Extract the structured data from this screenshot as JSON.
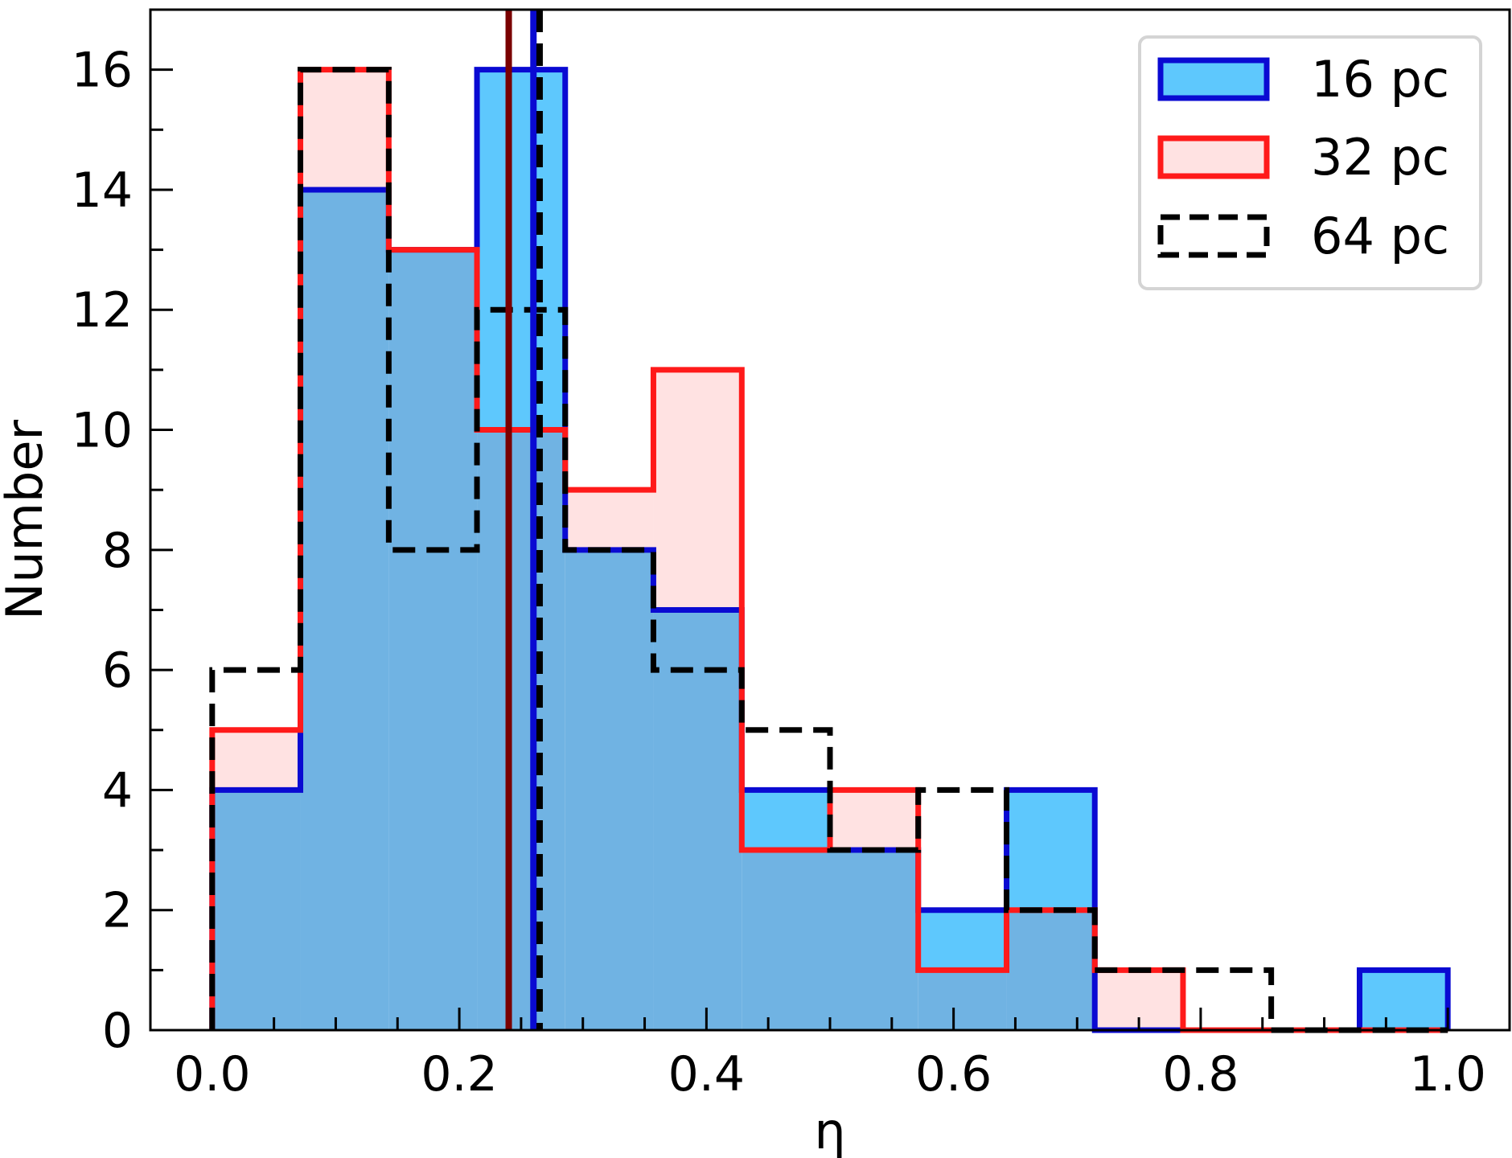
{
  "chart_data": {
    "type": "bar",
    "xlabel": "η",
    "ylabel": "Number",
    "xlim": [
      -0.05,
      1.05
    ],
    "ylim": [
      0,
      17
    ],
    "xticks": [
      "0.0",
      "0.2",
      "0.4",
      "0.6",
      "0.8",
      "1.0"
    ],
    "yticks": [
      "0",
      "2",
      "4",
      "6",
      "8",
      "10",
      "12",
      "14",
      "16"
    ],
    "bin_edges": [
      0.0,
      0.0714,
      0.1429,
      0.2143,
      0.2857,
      0.3571,
      0.4286,
      0.5,
      0.5714,
      0.6429,
      0.7143,
      0.7857,
      0.8571,
      0.9286,
      1.0
    ],
    "series": [
      {
        "name": "16 pc",
        "values": [
          4,
          14,
          13,
          16,
          8,
          7,
          4,
          3,
          2,
          4,
          0,
          0,
          0,
          1
        ],
        "median": 0.26
      },
      {
        "name": "32 pc",
        "values": [
          5,
          16,
          13,
          10,
          9,
          11,
          3,
          4,
          1,
          2,
          1,
          0,
          0,
          0
        ],
        "median": 0.24
      },
      {
        "name": "64 pc",
        "values": [
          6,
          16,
          8,
          12,
          8,
          6,
          5,
          3,
          4,
          2,
          1,
          1,
          0,
          0
        ],
        "median": 0.265
      }
    ],
    "colors": {
      "s16_fill": "#5ec8fd",
      "s16_edge": "#0a0ad2",
      "s32_fill": "#ffe2e2",
      "s32_edge": "#ff1a1a",
      "s64_edge": "#000000",
      "overlap_fill": "#70b3e3",
      "median_32": "#7a0000"
    },
    "legend": {
      "position": "top-right"
    },
    "grid": false
  }
}
